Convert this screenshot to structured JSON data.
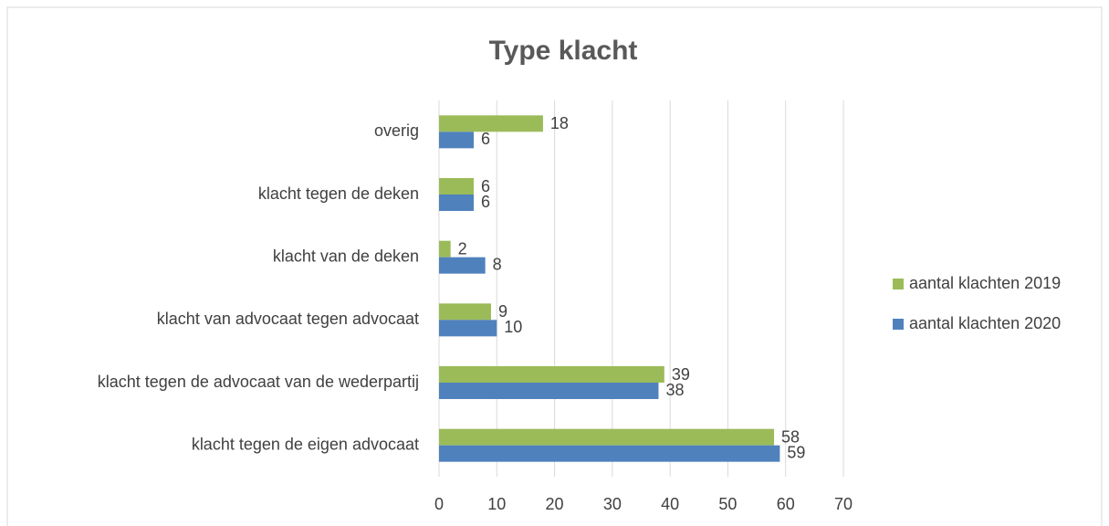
{
  "chart_data": {
    "type": "bar",
    "orientation": "horizontal",
    "title": "Type klacht",
    "categories": [
      "overig",
      "klacht tegen de deken",
      "klacht van de deken",
      "klacht van advocaat tegen advocaat",
      "klacht tegen de advocaat van de wederpartij",
      "klacht tegen de eigen advocaat"
    ],
    "series": [
      {
        "name": "aantal klachten 2019",
        "color": "#9bbb59",
        "values": [
          18,
          6,
          2,
          9,
          39,
          58
        ]
      },
      {
        "name": "aantal klachten 2020",
        "color": "#4f81bd",
        "values": [
          6,
          6,
          8,
          10,
          38,
          59
        ]
      }
    ],
    "xlim": [
      0,
      70
    ],
    "xticks": [
      0,
      10,
      20,
      30,
      40,
      50,
      60,
      70
    ],
    "grid": true,
    "legend": "right"
  }
}
